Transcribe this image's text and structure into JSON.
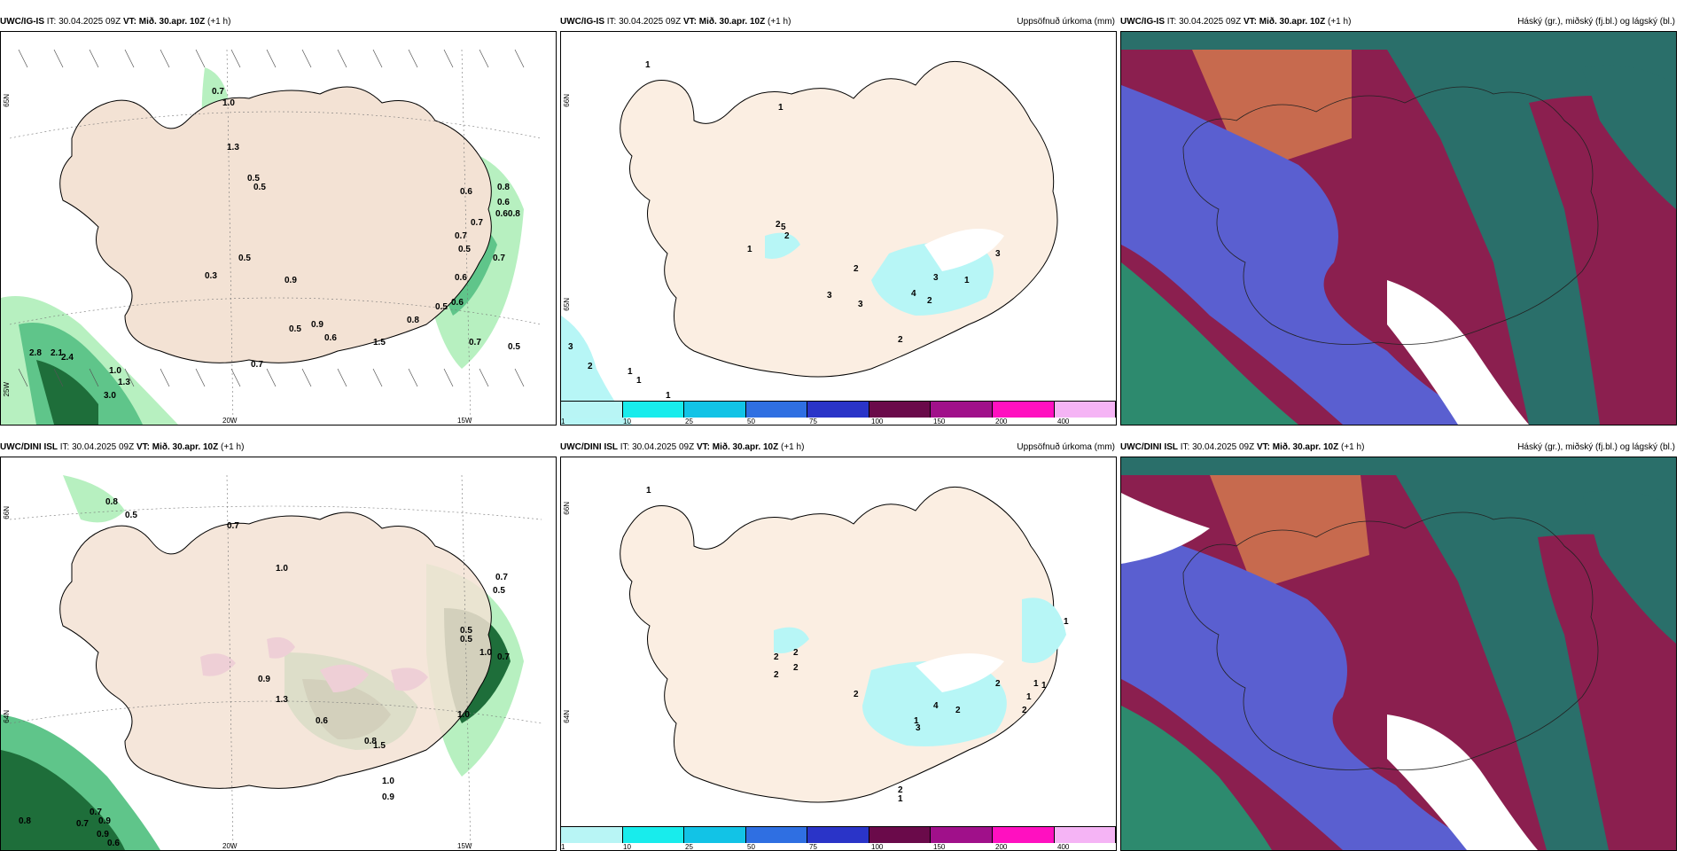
{
  "colors": {
    "land": "#f3e2d4",
    "land_light": "#fbeee2",
    "coast": "#000000",
    "precip_light_green": "#b7f0c0",
    "precip_mid_green": "#5fc58a",
    "precip_dark_green": "#1e6e3a",
    "precip_purple": "#d268e3",
    "cloud_high": "#2d8a6e",
    "cloud_mid": "#8b1f4f",
    "cloud_low": "#5a5fd0",
    "cloud_red": "#c76a4e"
  },
  "rows": [
    {
      "model": "UWC/IG-IS",
      "init_label": "IT: 30.04.2025 09Z",
      "valid_label": "VT: Mið. 30.apr. 10Z",
      "lead": "(+1 h)",
      "panels": [
        {
          "type": "precip-wind",
          "right_title": "",
          "coord_labels": [
            "65N",
            "25W",
            "20W",
            "15W"
          ],
          "values": [
            "0.7",
            "1.0",
            "1.3",
            "0.5",
            "0.5",
            "0.6",
            "0.8",
            "0.6",
            "0.60.8",
            "0.7",
            "0.5",
            "0.6",
            "0.7",
            "0.9",
            "0.6",
            "0.5",
            "0.5",
            "0.6",
            "0.7",
            "0.5",
            "2.8",
            "2.1",
            "2.4",
            "1.0",
            "3.0",
            "1.3",
            "0.7",
            "1.5",
            "0.9",
            "0.8",
            "0.7",
            "0.5",
            "0.3"
          ]
        },
        {
          "type": "accum-precip",
          "right_title": "Uppsöfnuð úrkoma (mm)",
          "coord_labels": [
            "65N",
            "66N"
          ],
          "values": [
            "1",
            "1",
            "3",
            "2",
            "1",
            "1",
            "1",
            "2",
            "5",
            "2",
            "1",
            "2",
            "3",
            "3",
            "4",
            "3",
            "2",
            "1",
            "3",
            "2"
          ],
          "colorbar": [
            "1",
            "10",
            "25",
            "50",
            "75",
            "100",
            "150",
            "200",
            "400"
          ]
        },
        {
          "type": "cloud-cover",
          "right_title": "Háský (gr.), miðský (fj.bl.) og lágský (bl.)"
        }
      ]
    },
    {
      "model": "UWC/DINI ISL",
      "init_label": "IT: 30.04.2025 09Z",
      "valid_label": "VT: Mið. 30.apr. 10Z",
      "lead": "(+1 h)",
      "panels": [
        {
          "type": "precip-wind",
          "right_title": "",
          "coord_labels": [
            "66N",
            "64N",
            "20W",
            "15W"
          ],
          "values": [
            "0.8",
            "0.5",
            "0.7",
            "1.0",
            "0.5",
            "0.7",
            "0.5",
            "1.0",
            "0.9",
            "1.3",
            "0.6",
            "1.0",
            "0.9",
            "1.5",
            "0.8",
            "1.0",
            "0.7",
            "0.9",
            "0.6",
            "0.8",
            "0.7",
            "0.9",
            "0.5",
            "0.7"
          ]
        },
        {
          "type": "accum-precip",
          "right_title": "Uppsöfnuð úrkoma (mm)",
          "coord_labels": [
            "66N",
            "64N"
          ],
          "values": [
            "1",
            "2",
            "2",
            "2",
            "2",
            "1",
            "2",
            "3",
            "4",
            "2",
            "2",
            "1",
            "1",
            "1",
            "2",
            "1",
            "2",
            "1"
          ],
          "colorbar": [
            "1",
            "10",
            "25",
            "50",
            "75",
            "100",
            "150",
            "200",
            "400"
          ]
        },
        {
          "type": "cloud-cover",
          "right_title": "Háský (gr.), miðský (fj.bl.) og lágský (bl.)"
        }
      ]
    }
  ]
}
